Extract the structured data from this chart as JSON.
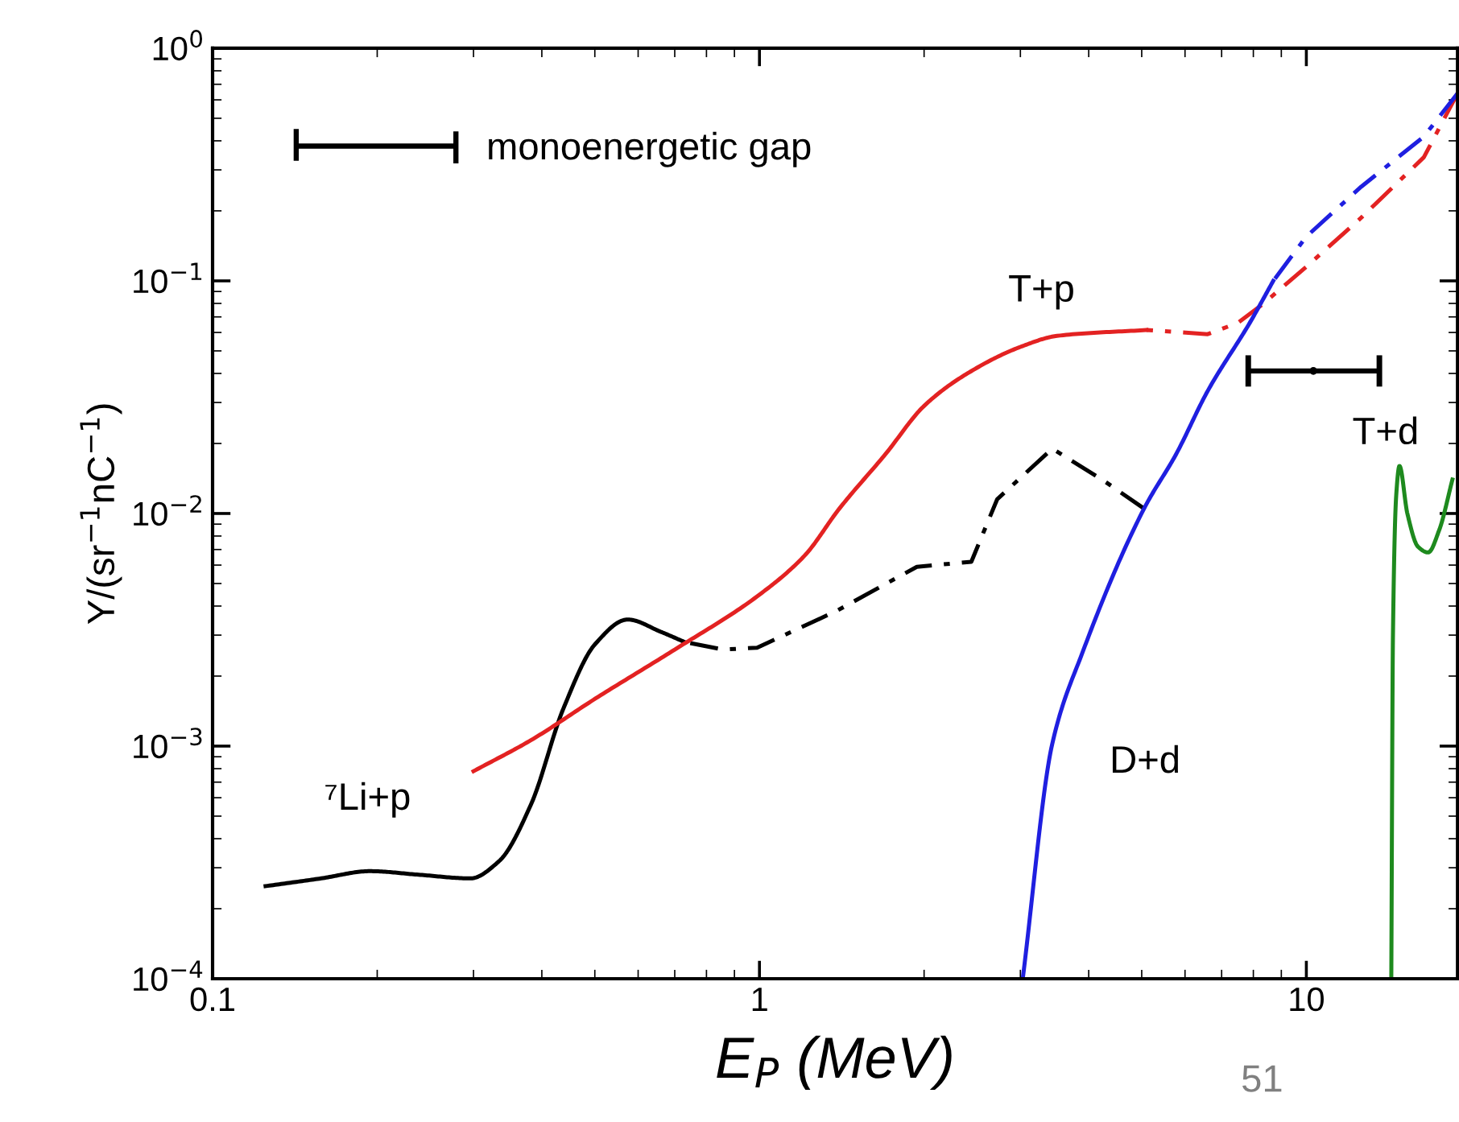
{
  "chart_data": {
    "type": "line",
    "xlabel": "E$_{P}$ (MeV)",
    "ylabel": "Y/(sr$^{−1}$nC$^{−1}$)",
    "log": "xy",
    "grid": false,
    "legend": "top left",
    "marker": "none",
    "xlim": [
      0.1,
      18.9
    ],
    "ylim": [
      0.0001,
      1
    ],
    "xticks": [
      0.1,
      1,
      10
    ],
    "yticks": [
      {
        "value": 0.0001,
        "label": "10$^{−4}$"
      },
      {
        "value": 0.001,
        "label": "10$^{−3}$"
      },
      {
        "value": 0.01,
        "label": "10$^{−2}$"
      },
      {
        "value": 0.1,
        "label": "10$^{−1}$"
      },
      {
        "value": 1,
        "label": "10$^{0}$"
      }
    ],
    "series": [
      {
        "name": "⁷Li+p",
        "color": "#000000",
        "line_style": "solid",
        "x": [
          0.125,
          0.158,
          0.194,
          0.238,
          0.296,
          0.334,
          0.382,
          0.438,
          0.501,
          0.574,
          0.66,
          0.73
        ],
        "values": [
          0.00025,
          0.00027,
          0.00029,
          0.00028,
          0.00027,
          0.00032,
          0.00056,
          0.00145,
          0.00275,
          0.0035,
          0.0031,
          0.0028
        ]
      },
      {
        "color": "#000000",
        "line_style": "dashed",
        "x": [
          0.73,
          0.86,
          0.99,
          1.38,
          1.94,
          2.44,
          2.72,
          3.43,
          4.23,
          5.05
        ],
        "values": [
          0.0028,
          0.0026,
          0.00265,
          0.0038,
          0.0059,
          0.0062,
          0.0115,
          0.019,
          0.014,
          0.0105
        ]
      },
      {
        "name": "T+p",
        "color": "#e32222",
        "line_style": "solid",
        "x": [
          0.3,
          0.382,
          0.501,
          0.7,
          0.99,
          1.21,
          1.4,
          1.7,
          2.0,
          2.4,
          3.0,
          3.5,
          5.1
        ],
        "values": [
          0.00078,
          0.00106,
          0.0016,
          0.0026,
          0.0044,
          0.0066,
          0.0105,
          0.018,
          0.029,
          0.04,
          0.052,
          0.058,
          0.0615
        ]
      },
      {
        "color": "#e32222",
        "line_style": "dashed",
        "x": [
          5.1,
          6.6,
          7.5,
          8.3,
          10,
          12.6,
          16.4,
          18.9
        ],
        "values": [
          0.0615,
          0.059,
          0.066,
          0.079,
          0.115,
          0.187,
          0.34,
          0.64
        ]
      },
      {
        "name": "D+d",
        "color": "#1f1fe0",
        "line_style": "solid",
        "x": [
          3.03,
          3.43,
          3.9,
          5.05,
          5.78,
          6.6,
          7.88,
          8.7
        ],
        "values": [
          0.0001,
          0.00102,
          0.00254,
          0.0105,
          0.018,
          0.0336,
          0.066,
          0.1
        ]
      },
      {
        "color": "#1f1fe0",
        "line_style": "dashed",
        "x": [
          8.7,
          10,
          12.6,
          16.4,
          18.9
        ],
        "values": [
          0.1,
          0.155,
          0.254,
          0.417,
          0.64
        ]
      },
      {
        "name": "T+d",
        "color": "#1e8a1e",
        "line_style": "solid",
        "x": [
          14.3,
          14.4,
          14.6,
          14.8,
          15.3,
          16.0,
          16.7,
          17.5,
          18.5
        ],
        "values": [
          0.0001,
          0.003,
          0.012,
          0.016,
          0.01,
          0.0072,
          0.0068,
          0.0085,
          0.014
        ]
      },
      {
        "name": "monoenergetic gap",
        "type": "scatter",
        "color": "#000000",
        "x": [
          10.3
        ],
        "values": [
          0.041
        ],
        "xerrors": [
          [
            7.83,
            13.6
          ]
        ]
      }
    ],
    "annotations": [
      "51"
    ]
  }
}
